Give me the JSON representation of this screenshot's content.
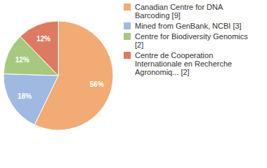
{
  "chart_data": {
    "type": "pie",
    "categories": [
      "Canadian Centre for DNA Barcoding [9]",
      "Mined from GenBank, NCBI [3]",
      "Centre for Biodiversity Genomics [2]",
      "Centre de Cooperation Internationale en Recherche Agronomiq... [2]"
    ],
    "values": [
      56,
      18,
      12,
      12
    ],
    "value_labels": [
      "56%",
      "18%",
      "12%",
      "12%"
    ],
    "colors": [
      "#f2ab74",
      "#9fb9e0",
      "#a7c97f",
      "#dd7a62"
    ],
    "data_labels": true,
    "legend": "right"
  }
}
